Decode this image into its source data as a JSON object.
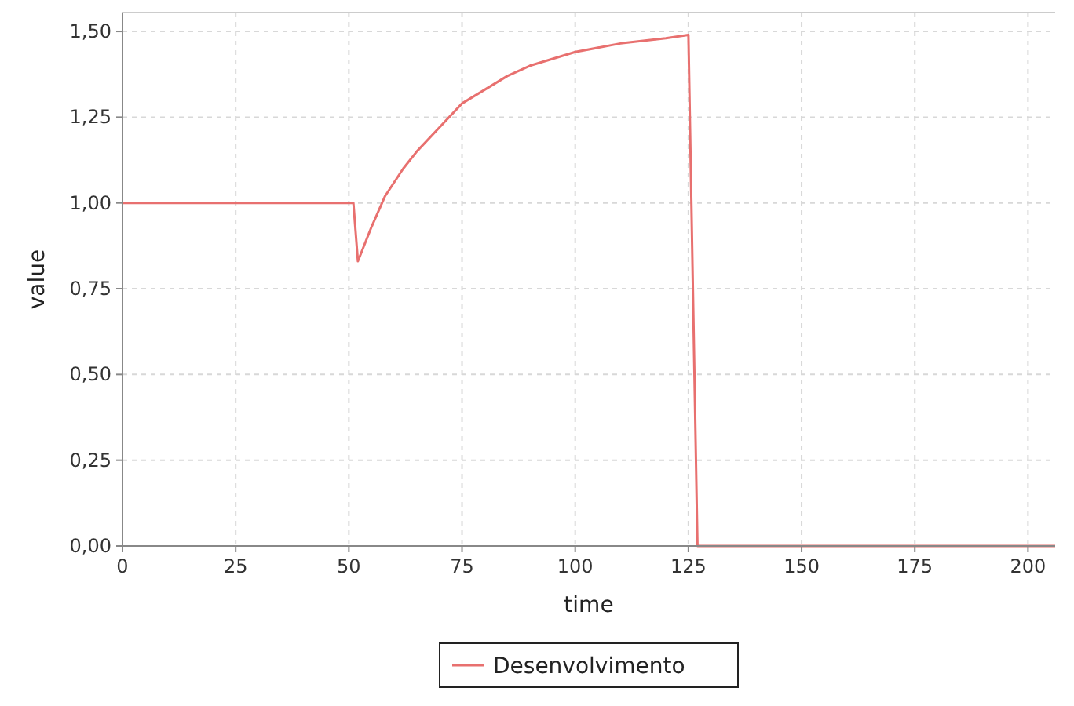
{
  "chart_data": {
    "type": "line",
    "xlabel": "time",
    "ylabel": "value",
    "x": [
      0,
      51,
      52,
      55,
      58,
      62,
      65,
      70,
      75,
      80,
      85,
      90,
      100,
      110,
      120,
      125,
      127,
      206
    ],
    "series": [
      {
        "name": "Desenvolvimento",
        "color": "#e8706f",
        "values": [
          1,
          1,
          0.83,
          0.93,
          1.02,
          1.1,
          1.15,
          1.22,
          1.29,
          1.33,
          1.37,
          1.4,
          1.44,
          1.465,
          1.48,
          1.49,
          0,
          0
        ]
      }
    ],
    "xlim": [
      0,
      206
    ],
    "xticks": [
      0,
      25,
      50,
      75,
      100,
      125,
      150,
      175,
      200
    ],
    "ylim": [
      0,
      1.555
    ],
    "yticks": [
      {
        "value": 0,
        "label": "0,00"
      },
      {
        "value": 0.25,
        "label": "0,25"
      },
      {
        "value": 0.5,
        "label": "0,50"
      },
      {
        "value": 0.75,
        "label": "0,75"
      },
      {
        "value": 1,
        "label": "1,00"
      },
      {
        "value": 1.25,
        "label": "1,25"
      },
      {
        "value": 1.5,
        "label": "1,50"
      }
    ],
    "grid": true,
    "legend": "bottom",
    "marker": "none",
    "line_style": "solid"
  }
}
